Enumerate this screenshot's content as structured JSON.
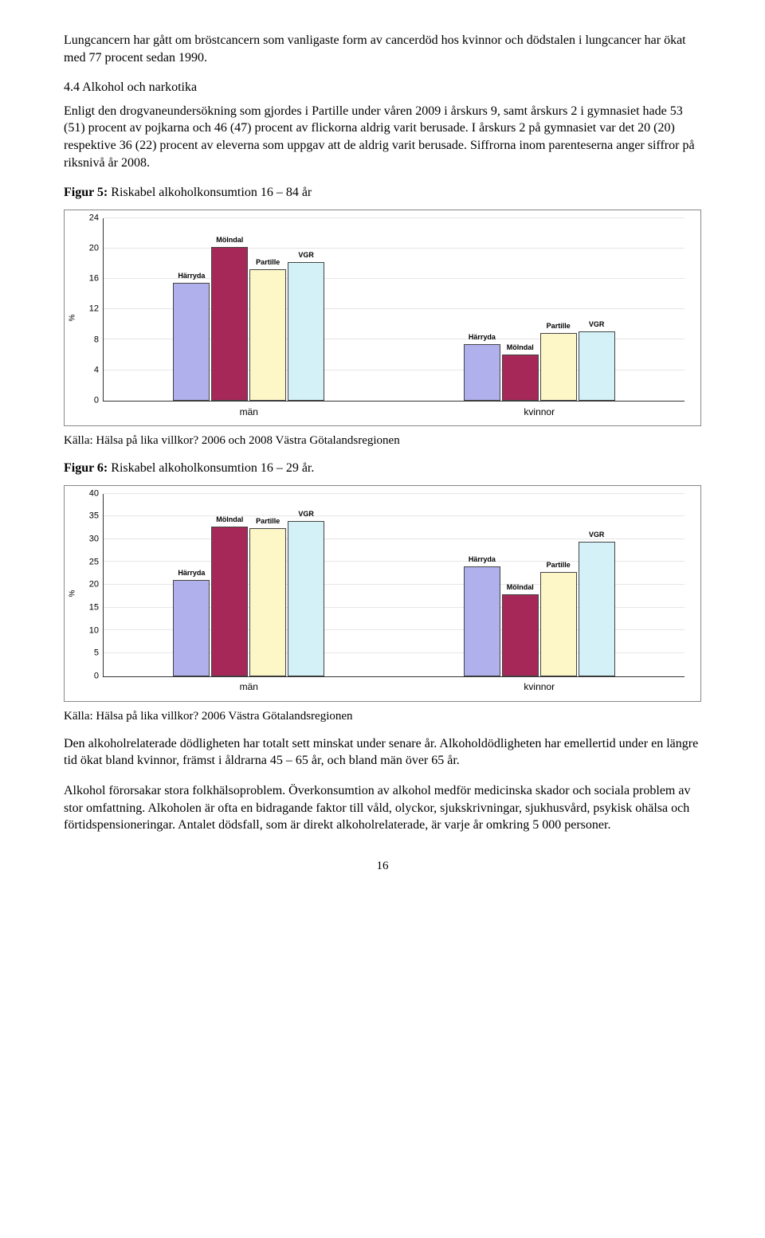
{
  "intro_para": "Lungcancern har gått om bröstcancern som vanligaste form av cancerdöd hos kvinnor och dödstalen i lungcancer har ökat med 77 procent sedan 1990.",
  "section_heading": "4.4 Alkohol och narkotika",
  "section_para1": "Enligt den drogvaneundersökning som gjordes i Partille under våren 2009 i årskurs 9, samt årskurs 2 i gymnasiet hade 53 (51) procent av pojkarna och 46 (47) procent av flickorna aldrig varit berusade. I årskurs 2 på gymnasiet var det 20 (20) respektive 36 (22) procent av eleverna som uppgav att de aldrig varit berusade. Siffrorna inom parenteserna anger siffror på riksnivå år 2008.",
  "fig5": {
    "heading_prefix": "Figur 5:",
    "heading_rest": " Riskabel alkoholkonsumtion 16 – 84 år",
    "ylabel": "%",
    "ylim": [
      0,
      24
    ],
    "ytick_step": 4,
    "categories": [
      "män",
      "kvinnor"
    ],
    "series": [
      "Härryda",
      "Mölndal",
      "Partille",
      "VGR"
    ],
    "series_colors": [
      "#b0b0ec",
      "#a52858",
      "#fdf7c8",
      "#d3f1f6"
    ],
    "values": [
      [
        15.5,
        20.2,
        17.3,
        18.2
      ],
      [
        7.4,
        6.1,
        8.9,
        9.1
      ]
    ],
    "grid_color": "#e6e6e6",
    "border_color": "#444444",
    "source": "Källa: Hälsa på lika villkor? 2006 och 2008 Västra Götalandsregionen"
  },
  "fig6": {
    "heading_prefix": "Figur 6:",
    "heading_rest": " Riskabel alkoholkonsumtion 16 – 29 år.",
    "ylabel": "%",
    "ylim": [
      0,
      40
    ],
    "ytick_step": 5,
    "categories": [
      "män",
      "kvinnor"
    ],
    "series": [
      "Härryda",
      "Mölndal",
      "Partille",
      "VGR"
    ],
    "series_colors": [
      "#b0b0ec",
      "#a52858",
      "#fdf7c8",
      "#d3f1f6"
    ],
    "values": [
      [
        21.0,
        32.8,
        32.5,
        34.0
      ],
      [
        24.0,
        18.0,
        22.8,
        29.5
      ]
    ],
    "grid_color": "#e6e6e6",
    "border_color": "#444444",
    "source": "Källa: Hälsa på lika villkor? 2006 Västra Götalandsregionen"
  },
  "closing_para1": "Den alkoholrelaterade dödligheten har totalt sett minskat under senare år. Alkoholdödligheten har emellertid under en längre tid ökat bland kvinnor, främst i åldrarna 45 – 65 år, och bland män över 65 år.",
  "closing_para2": "Alkohol förorsakar stora folkhälsoproblem. Överkonsumtion av alkohol medför medicinska skador och sociala problem av stor omfattning. Alkoholen är ofta en bidragande faktor till våld, olyckor, sjukskrivningar, sjukhusvård, psykisk ohälsa och förtidspensioneringar. Antalet dödsfall, som är direkt alkoholrelaterade, är varje år omkring 5 000 personer.",
  "page_number": "16"
}
